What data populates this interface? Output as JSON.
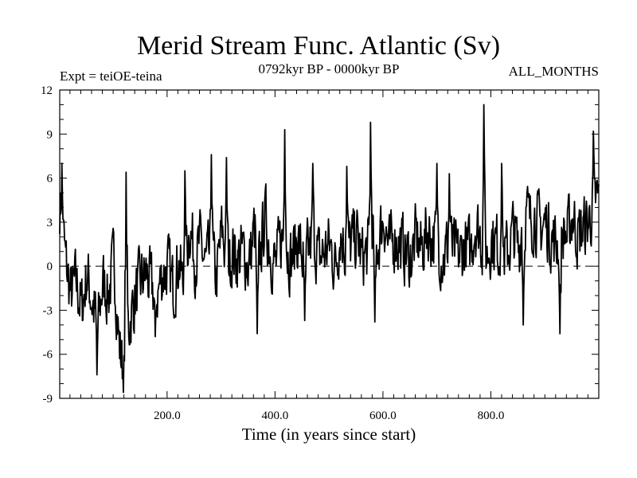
{
  "chart_data": {
    "type": "line",
    "title": "Merid Stream Func. Atlantic (Sv)",
    "subtitle_left": "Expt = teiOE-teina",
    "subtitle_center": "0792kyr BP - 0000kyr BP",
    "subtitle_right": "ALL_MONTHS",
    "xlabel": "Time (in years since start)",
    "ylabel": "",
    "xlim": [
      1,
      1000
    ],
    "ylim": [
      -9,
      12
    ],
    "xticks": [
      200,
      400,
      600,
      800
    ],
    "xtick_labels": [
      "200.0",
      "400.0",
      "600.0",
      "800.0"
    ],
    "yticks": [
      -9,
      -6,
      -3,
      0,
      3,
      6,
      9,
      12
    ],
    "ytick_labels": [
      "-9",
      "-6",
      "-3",
      "0",
      "3",
      "6",
      "9",
      "12"
    ],
    "zero_line": true,
    "series": [
      {
        "name": "teiOE-teina",
        "x_start": 1,
        "x_step": 10,
        "values": [
          4.2,
          0.5,
          -2.0,
          -1.0,
          -3.0,
          -0.5,
          -2.5,
          -4.0,
          -1.0,
          -2.0,
          0.5,
          -5.5,
          -7.5,
          -3.5,
          -2.0,
          -1.0,
          -0.5,
          -1.5,
          -2.0,
          -0.5,
          0.0,
          -1.5,
          0.5,
          -2.0,
          3.0,
          0.5,
          1.5,
          0.0,
          1.0,
          -1.0,
          2.5,
          0.0,
          1.0,
          0.5,
          1.0,
          0.0,
          2.5,
          0.5,
          3.5,
          1.0,
          0.0,
          2.0,
          1.0,
          0.5,
          2.0,
          0.5,
          1.0,
          2.0,
          0.5,
          1.0,
          1.5,
          0.0,
          2.5,
          1.0,
          1.5,
          2.0,
          0.5,
          1.0,
          2.5,
          1.5,
          3.5,
          1.0,
          2.0,
          1.5,
          1.0,
          0.5,
          2.0,
          1.0,
          2.5,
          2.0,
          1.5,
          0.5,
          1.5,
          1.0,
          0.5,
          1.5,
          1.0,
          3.0,
          2.0,
          0.5,
          2.0,
          1.5,
          0.5,
          1.0,
          2.5,
          1.0,
          4.5,
          3.0,
          3.5,
          2.5,
          3.0,
          2.0,
          1.5,
          2.5,
          2.0,
          3.5,
          2.0,
          2.5,
          3.0,
          4.5
        ]
      }
    ],
    "spikes": [
      {
        "x": 5,
        "y": 7.0
      },
      {
        "x": 70,
        "y": -7.4
      },
      {
        "x": 124,
        "y": 6.4
      },
      {
        "x": 178,
        "y": -4.8
      },
      {
        "x": 233,
        "y": 6.5
      },
      {
        "x": 282,
        "y": 7.6
      },
      {
        "x": 310,
        "y": 7.4
      },
      {
        "x": 367,
        "y": -4.6
      },
      {
        "x": 418,
        "y": 9.3
      },
      {
        "x": 455,
        "y": -3.7
      },
      {
        "x": 470,
        "y": 7.0
      },
      {
        "x": 533,
        "y": 6.8
      },
      {
        "x": 577,
        "y": 9.8
      },
      {
        "x": 585,
        "y": -3.8
      },
      {
        "x": 700,
        "y": 7.0
      },
      {
        "x": 723,
        "y": 6.3
      },
      {
        "x": 787,
        "y": 11.0
      },
      {
        "x": 820,
        "y": 7.0
      },
      {
        "x": 860,
        "y": -4.0
      },
      {
        "x": 928,
        "y": -4.6
      },
      {
        "x": 990,
        "y": 9.2
      }
    ]
  }
}
